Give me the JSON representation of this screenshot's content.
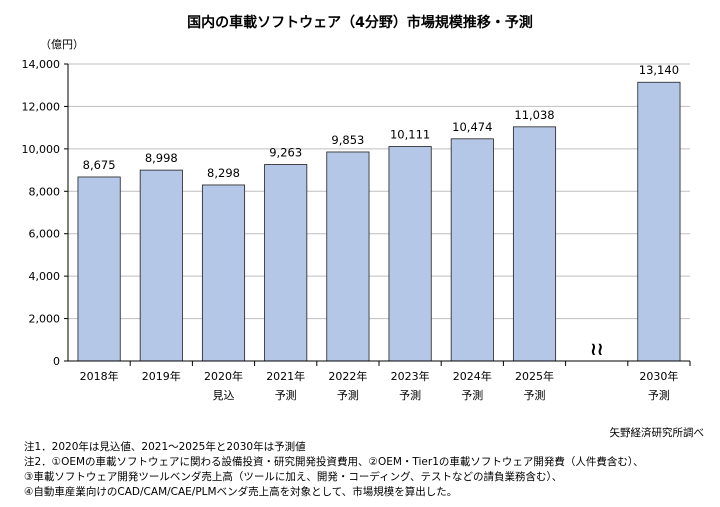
{
  "chart_data": {
    "type": "bar",
    "title": "国内の車載ソフトウェア（4分野）市場規模推移・予測",
    "ylabel": "（億円）",
    "ylim": [
      0,
      14000
    ],
    "yticks": [
      "0",
      "2,000",
      "4,000",
      "6,000",
      "8,000",
      "10,000",
      "12,000",
      "14,000"
    ],
    "categories": [
      {
        "label": "2018年",
        "sub": ""
      },
      {
        "label": "2019年",
        "sub": ""
      },
      {
        "label": "2020年",
        "sub": "見込"
      },
      {
        "label": "2021年",
        "sub": "予測"
      },
      {
        "label": "2022年",
        "sub": "予測"
      },
      {
        "label": "2023年",
        "sub": "予測"
      },
      {
        "label": "2024年",
        "sub": "予測"
      },
      {
        "label": "2025年",
        "sub": "予測"
      },
      {
        "label": "",
        "sub": ""
      },
      {
        "label": "2030年",
        "sub": "予測"
      }
    ],
    "values": [
      8675,
      8998,
      8298,
      9263,
      9853,
      10111,
      10474,
      11038,
      null,
      13140
    ],
    "value_labels": [
      "8,675",
      "8,998",
      "8,298",
      "9,263",
      "9,853",
      "10,111",
      "10,474",
      "11,038",
      "",
      "13,140"
    ],
    "break_marker": "≀≀",
    "bar_color": "#b4c7e7",
    "bar_edge": "#1f1f1f",
    "grid": true
  },
  "source": "矢野経済研究所調べ",
  "notes": [
    "注1．2020年は見込値、2021～2025年と2030年は予測値",
    "注2．①OEMの車載ソフトウェアに関わる設備投資・研究開発投資費用、②OEM・Tier1の車載ソフトウェア開発費（人件費含む）、",
    "③車載ソフトウェア開発ツールベンダ売上高（ツールに加え、開発・コーディング、テストなどの請負業務含む）、",
    "④自動車産業向けのCAD/CAM/CAE/PLMベンダ売上高を対象として、市場規模を算出した。"
  ]
}
